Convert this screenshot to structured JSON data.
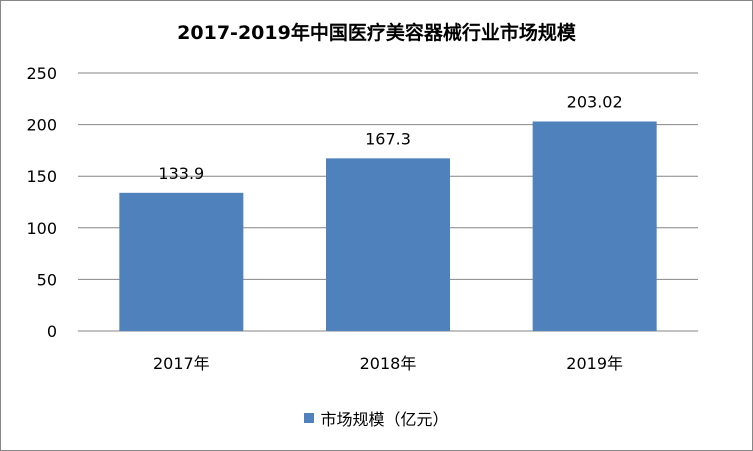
{
  "chart_data": {
    "type": "bar",
    "title": "2017-2019年中国医疗美容器械行业市场规模",
    "categories": [
      "2017年",
      "2018年",
      "2019年"
    ],
    "series": [
      {
        "name": "市场规模（亿元）",
        "values": [
          133.9,
          167.3,
          203.02
        ],
        "labels": [
          "133.9",
          "167.3",
          "203.02"
        ]
      }
    ],
    "ylim": [
      0,
      250
    ],
    "yticks": [
      0,
      50,
      100,
      150,
      200,
      250
    ],
    "grid": true,
    "legend_position": "bottom",
    "colors": {
      "bar": "#4F81BD",
      "grid": "#868686"
    }
  }
}
